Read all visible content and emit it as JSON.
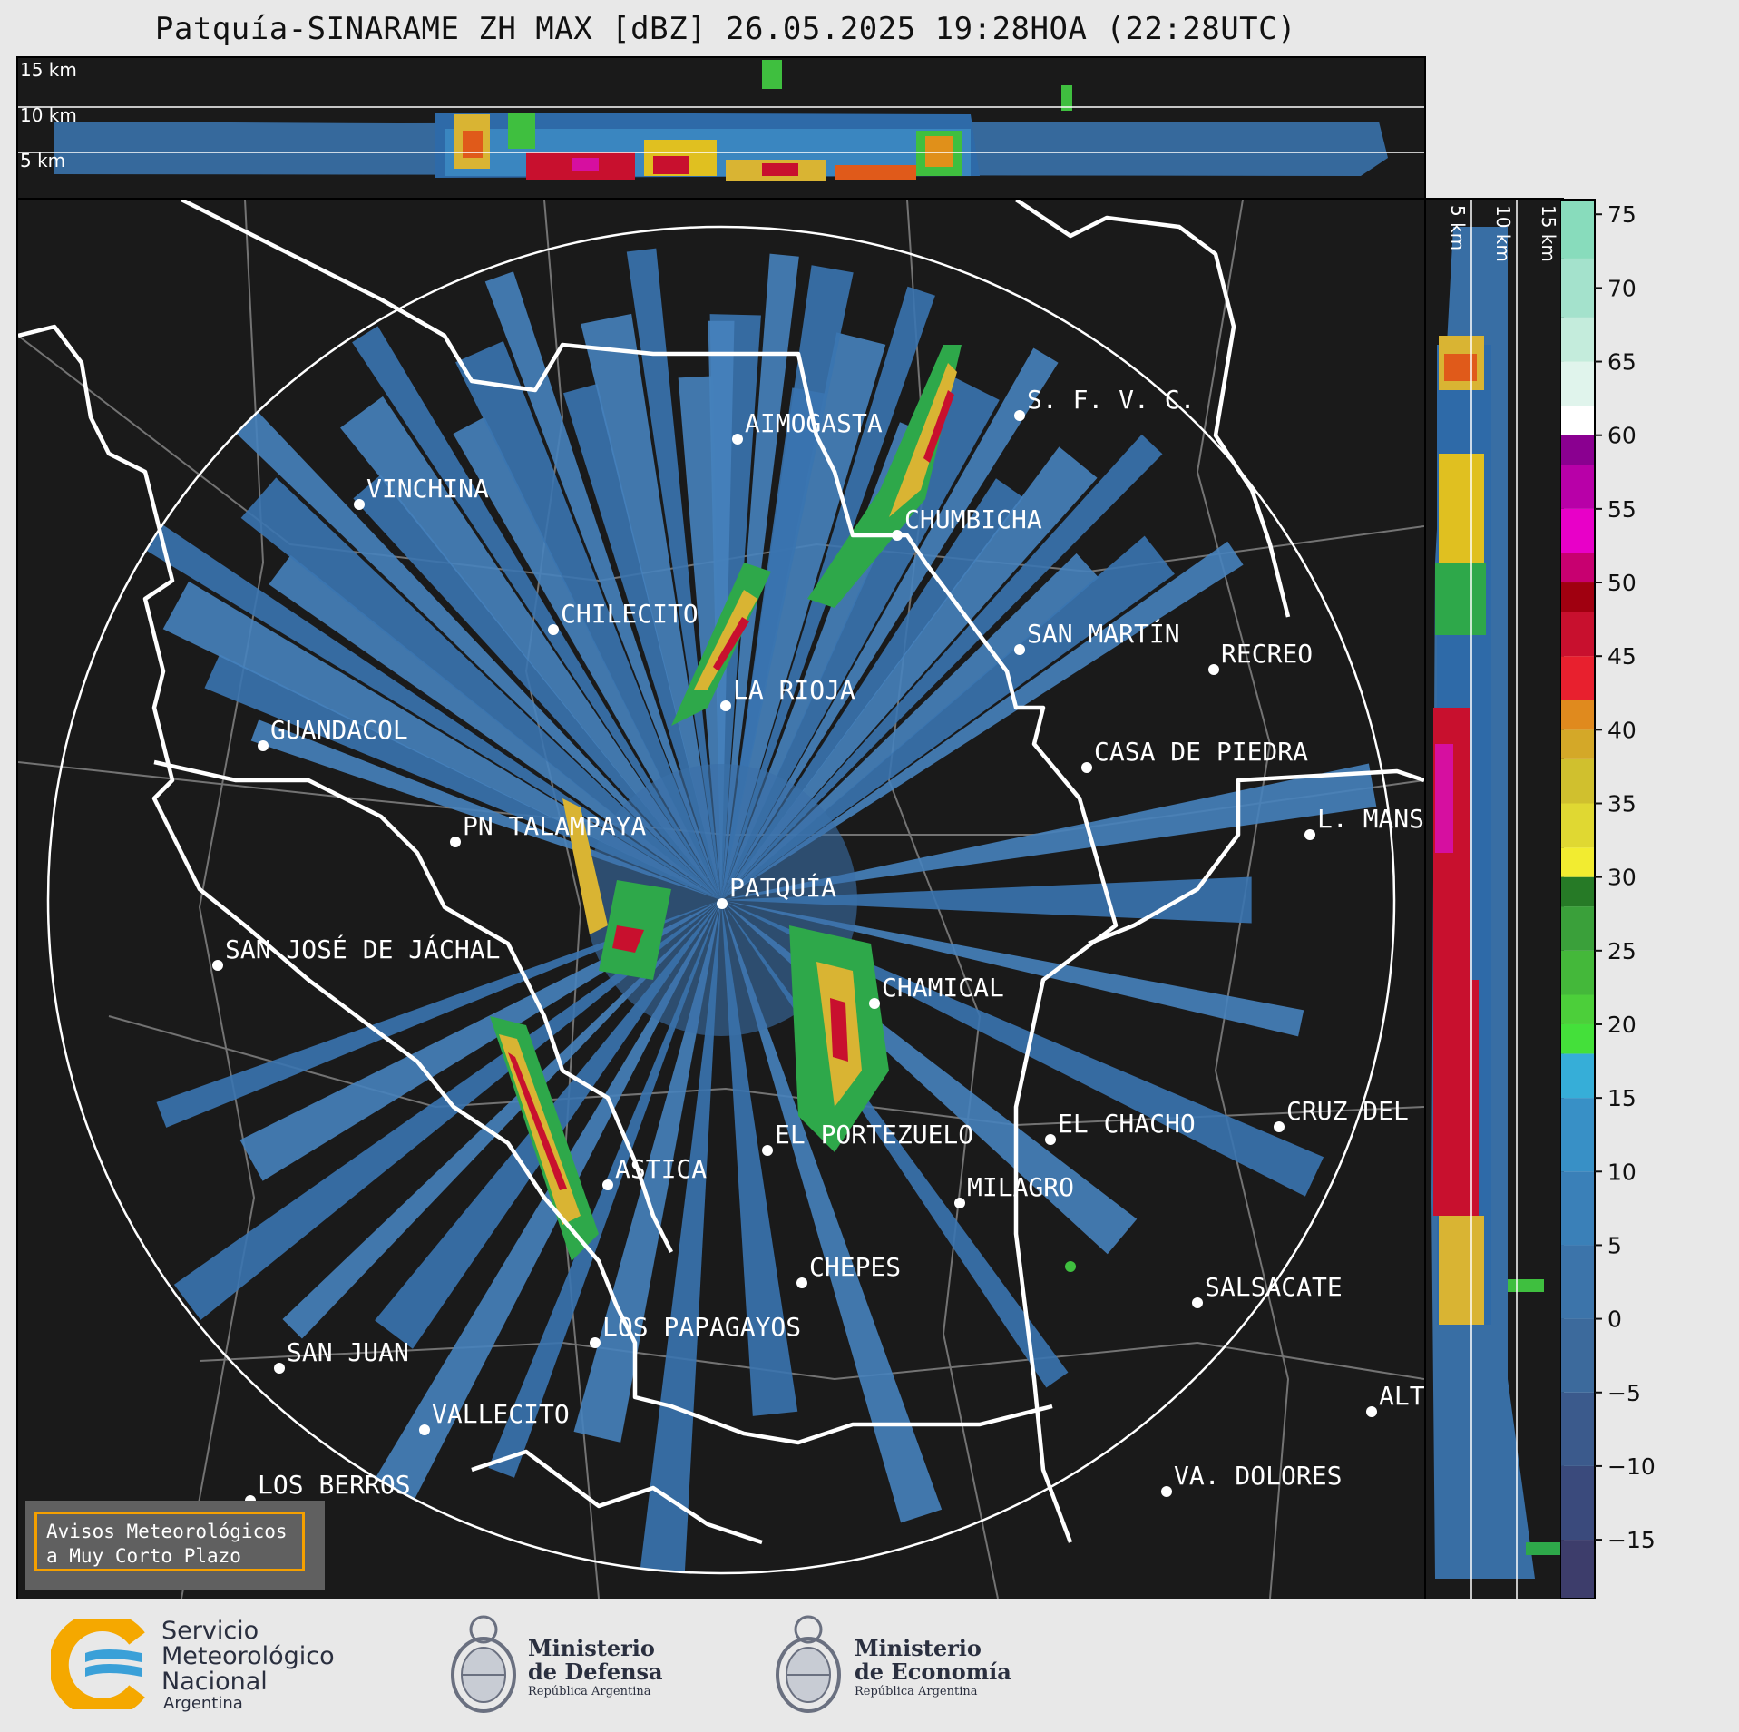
{
  "title": "Patquía-SINARAME ZH MAX [dBZ] 26.05.2025 19:28HOA (22:28UTC)",
  "top_panel": {
    "altitude_labels": [
      "15 km",
      "10 km",
      "5 km"
    ]
  },
  "side_panel": {
    "altitude_labels": [
      "5 km",
      "10 km",
      "15 km"
    ]
  },
  "colorbar": {
    "unit": "dBZ",
    "range": [
      -19,
      76
    ],
    "ticks": [
      "75",
      "70",
      "65",
      "60",
      "55",
      "50",
      "45",
      "40",
      "35",
      "30",
      "25",
      "20",
      "15",
      "10",
      "5",
      "0",
      "−5",
      "−10",
      "−15"
    ],
    "tick_values": [
      75,
      70,
      65,
      60,
      55,
      50,
      45,
      40,
      35,
      30,
      25,
      20,
      15,
      10,
      5,
      0,
      -5,
      -10,
      -15
    ]
  },
  "cities": [
    {
      "name": "AIMOGASTA"
    },
    {
      "name": "S. F. V. C."
    },
    {
      "name": "VINCHINA"
    },
    {
      "name": "CHUMBICHA"
    },
    {
      "name": "CHILECITO"
    },
    {
      "name": "SAN MARTÍN"
    },
    {
      "name": "RECREO"
    },
    {
      "name": "LA RIOJA"
    },
    {
      "name": "GUANDACOL"
    },
    {
      "name": "CASA DE PIEDRA"
    },
    {
      "name": "PN TALAMPAYA"
    },
    {
      "name": "L. MANS"
    },
    {
      "name": "PATQUÍA"
    },
    {
      "name": "SAN JOSÉ DE JÁCHAL"
    },
    {
      "name": "CHAMICAL"
    },
    {
      "name": "EL CHACHO"
    },
    {
      "name": "CRUZ DEL"
    },
    {
      "name": "EL PORTEZUELO"
    },
    {
      "name": "ASTICA"
    },
    {
      "name": "MILAGRO"
    },
    {
      "name": "CHEPES"
    },
    {
      "name": "SALSACATE"
    },
    {
      "name": "LOS PAPAGAYOS"
    },
    {
      "name": "SAN JUAN"
    },
    {
      "name": "VALLECITO"
    },
    {
      "name": "ALT"
    },
    {
      "name": "LOS BERROS"
    },
    {
      "name": "VA. DOLORES"
    }
  ],
  "notice": {
    "line1": "Avisos Meteorológicos",
    "line2": "a Muy Corto Plazo"
  },
  "logos": {
    "smn": {
      "line1": "Servicio",
      "line2": "Meteorológico",
      "line3": "Nacional",
      "line4": "Argentina"
    },
    "defensa": {
      "line1": "Ministerio",
      "line2": "de Defensa",
      "line3": "República Argentina"
    },
    "economia": {
      "line1": "Ministerio",
      "line2": "de Economía",
      "line3": "República Argentina"
    }
  },
  "colors": {
    "background": "#1a1a1a",
    "border": "#ffffff",
    "light_echo": "#3c78b4",
    "accent_orange": "#f5a000"
  }
}
